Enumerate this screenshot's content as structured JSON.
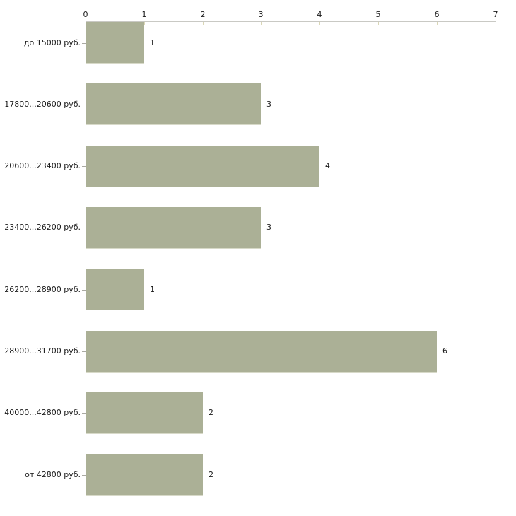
{
  "chart_data": {
    "type": "bar",
    "orientation": "horizontal",
    "title": "",
    "xlabel": "",
    "ylabel": "",
    "categories": [
      "до 15000 руб.",
      "17800...20600 руб.",
      "20600...23400 руб.",
      "23400...26200 руб.",
      "26200...28900 руб.",
      "28900...31700 руб.",
      "40000...42800 руб.",
      "от 42800 руб."
    ],
    "values": [
      1,
      3,
      4,
      3,
      1,
      6,
      2,
      2
    ],
    "value_labels": [
      "1",
      "3",
      "4",
      "3",
      "1",
      "6",
      "2",
      "2"
    ],
    "xlim": [
      0,
      7
    ],
    "x_ticks": [
      "0",
      "1",
      "2",
      "3",
      "4",
      "5",
      "6",
      "7"
    ],
    "axis_position": "top",
    "grid": false,
    "legend": false,
    "colors": {
      "bar_fill": "#abb096",
      "bar_edge": "#d7d9c8",
      "axis_line": "#c9c9c4",
      "axis_tick": "#d9d6b6",
      "text": "#1a1a1a",
      "background": "#ffffff"
    }
  }
}
